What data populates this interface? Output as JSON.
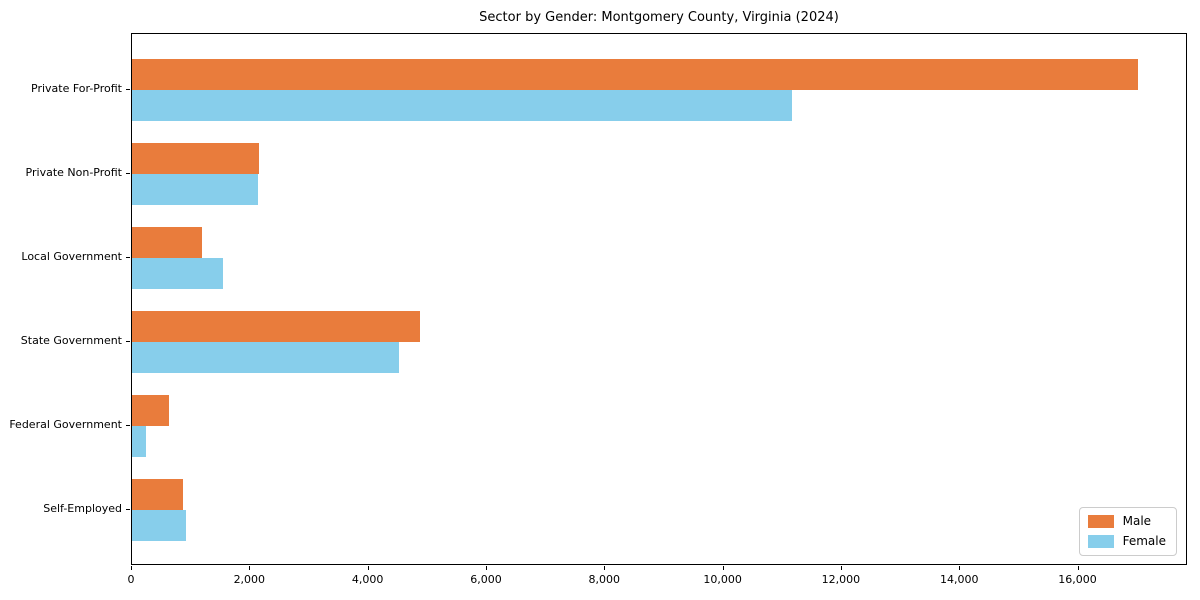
{
  "title": "Sector by Gender: Montgomery County, Virginia (2024)",
  "legend": {
    "position": "lower right",
    "items": [
      {
        "label": "Male",
        "color": "#e97c3c"
      },
      {
        "label": "Female",
        "color": "#87ceeb"
      }
    ]
  },
  "chart_data": {
    "type": "bar",
    "orientation": "horizontal",
    "title": "Sector by Gender: Montgomery County, Virginia (2024)",
    "categories": [
      "Private For-Profit",
      "Private Non-Profit",
      "Local Government",
      "State Government",
      "Federal Government",
      "Self-Employed"
    ],
    "series": [
      {
        "name": "Male",
        "color": "#e97c3c",
        "values": [
          17000,
          2140,
          1190,
          4860,
          620,
          860
        ]
      },
      {
        "name": "Female",
        "color": "#87ceeb",
        "values": [
          11160,
          2130,
          1540,
          4520,
          240,
          920
        ]
      }
    ],
    "xlabel": "",
    "ylabel": "",
    "xlim": [
      0,
      17850
    ],
    "xticks": [
      0,
      2000,
      4000,
      6000,
      8000,
      10000,
      12000,
      14000,
      16000
    ],
    "xtick_labels": [
      "0",
      "2,000",
      "4,000",
      "6,000",
      "8,000",
      "10,000",
      "12,000",
      "14,000",
      "16,000"
    ],
    "grid": false,
    "legend_position": "lower right"
  }
}
